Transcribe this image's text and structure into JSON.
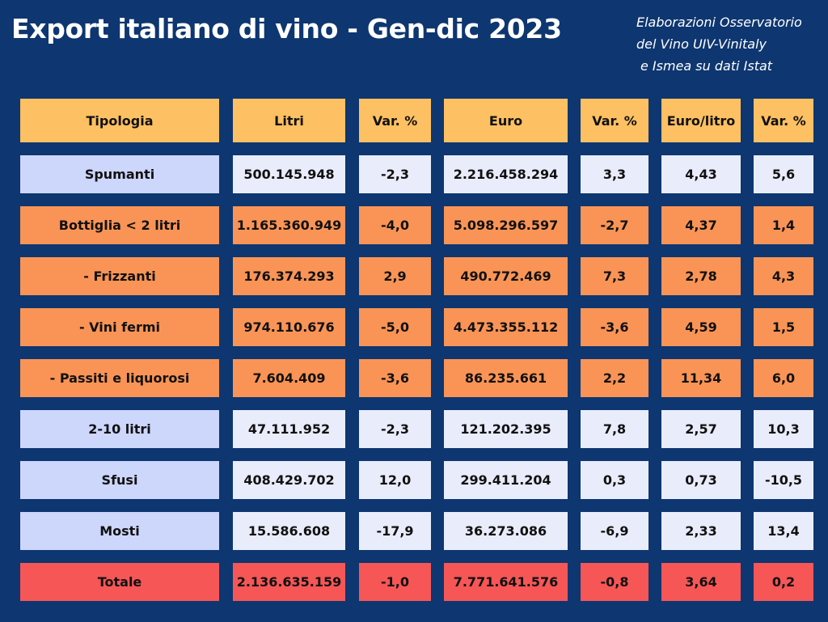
{
  "header": {
    "title": "Export italiano di vino - Gen-dic 2023",
    "source": [
      "Elaborazioni Osservatorio",
      "del Vino UIV-Vinitaly",
      "e Ismea su dati Istat"
    ]
  },
  "table": {
    "columns": [
      "Tipologia",
      "Litri",
      "Var. %",
      "Euro",
      "Var. %",
      "Euro/litro",
      "Var. %"
    ],
    "rows": [
      [
        "Spumanti",
        "500.145.948",
        "-2,3",
        "2.216.458.294",
        "3,3",
        "4,43",
        "5,6"
      ],
      [
        "Bottiglia < 2 litri",
        "1.165.360.949",
        "-4,0",
        "5.098.296.597",
        "-2,7",
        "4,37",
        "1,4"
      ],
      [
        "- Frizzanti",
        "176.374.293",
        "2,9",
        "490.772.469",
        "7,3",
        "2,78",
        "4,3"
      ],
      [
        "- Vini fermi",
        "974.110.676",
        "-5,0",
        "4.473.355.112",
        "-3,6",
        "4,59",
        "1,5"
      ],
      [
        "- Passiti e liquorosi",
        "7.604.409",
        "-3,6",
        "86.235.661",
        "2,2",
        "11,34",
        "6,0"
      ],
      [
        "2-10 litri",
        "47.111.952",
        "-2,3",
        "121.202.395",
        "7,8",
        "2,57",
        "10,3"
      ],
      [
        "Sfusi",
        "408.429.702",
        "12,0",
        "299.411.204",
        "0,3",
        "0,73",
        "-10,5"
      ],
      [
        "Mosti",
        "15.586.608",
        "-17,9",
        "36.273.086",
        "-6,9",
        "2,33",
        "13,4"
      ],
      [
        "Totale",
        "2.136.635.159",
        "-1,0",
        "7.771.641.576",
        "-0,8",
        "3,64",
        "0,2"
      ]
    ]
  }
}
